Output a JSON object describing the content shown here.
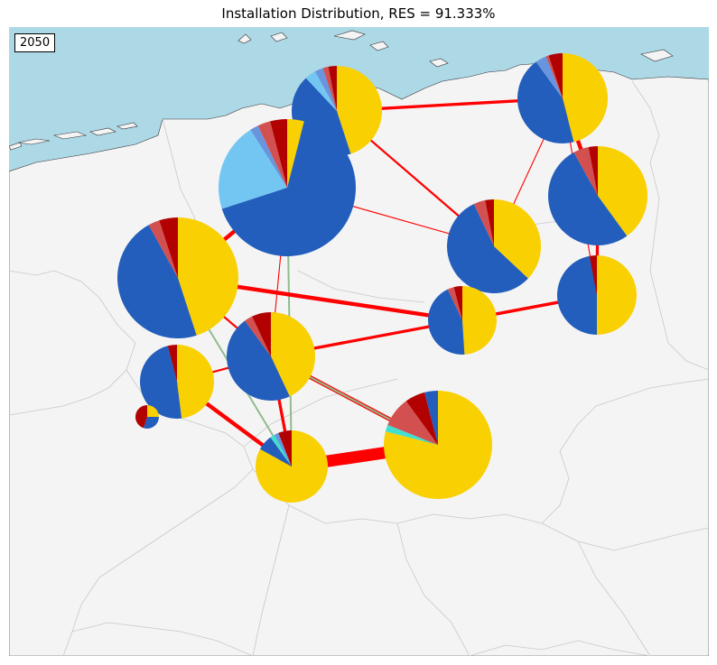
{
  "title": "Installation Distribution, RES = 91.333%",
  "year": "2050",
  "colors": {
    "sea": "#add8e6",
    "land": "#f4f4f4",
    "border": "#c8c8c8",
    "frame": "#000000",
    "ac_line": "#ff0000",
    "dc_line": "#8fbc8f",
    "solar": "#f9d002",
    "onwind": "#235ebc",
    "offwind_ac": "#6895dd",
    "offwind_dc": "#74c6f2",
    "ror": "#40e0d0",
    "gas": "#d35050",
    "coal": "#b20101"
  },
  "nodes": [
    {
      "id": "n1",
      "parts": [
        {
          "c": "solar",
          "v": 45
        },
        {
          "c": "onwind",
          "v": 43
        },
        {
          "c": "offwind_dc",
          "v": 4
        },
        {
          "c": "offwind_ac",
          "v": 3
        },
        {
          "c": "gas",
          "v": 2
        },
        {
          "c": "coal",
          "v": 3
        }
      ]
    },
    {
      "id": "n2",
      "parts": [
        {
          "c": "solar",
          "v": 4
        },
        {
          "c": "onwind",
          "v": 66
        },
        {
          "c": "offwind_dc",
          "v": 21
        },
        {
          "c": "offwind_ac",
          "v": 2
        },
        {
          "c": "gas",
          "v": 3
        },
        {
          "c": "coal",
          "v": 4
        }
      ]
    },
    {
      "id": "n3",
      "parts": [
        {
          "c": "solar",
          "v": 46
        },
        {
          "c": "onwind",
          "v": 44
        },
        {
          "c": "offwind_ac",
          "v": 4
        },
        {
          "c": "gas",
          "v": 1
        },
        {
          "c": "coal",
          "v": 5
        }
      ]
    },
    {
      "id": "n4",
      "parts": [
        {
          "c": "solar",
          "v": 45
        },
        {
          "c": "onwind",
          "v": 47
        },
        {
          "c": "gas",
          "v": 3
        },
        {
          "c": "coal",
          "v": 5
        }
      ]
    },
    {
      "id": "n5",
      "parts": [
        {
          "c": "solar",
          "v": 40
        },
        {
          "c": "onwind",
          "v": 52
        },
        {
          "c": "gas",
          "v": 5
        },
        {
          "c": "coal",
          "v": 3
        }
      ]
    },
    {
      "id": "n6",
      "parts": [
        {
          "c": "solar",
          "v": 37
        },
        {
          "c": "onwind",
          "v": 56
        },
        {
          "c": "gas",
          "v": 4
        },
        {
          "c": "coal",
          "v": 3
        }
      ]
    },
    {
      "id": "n7",
      "parts": [
        {
          "c": "solar",
          "v": 50
        },
        {
          "c": "onwind",
          "v": 47
        },
        {
          "c": "coal",
          "v": 3
        }
      ]
    },
    {
      "id": "n8",
      "parts": [
        {
          "c": "solar",
          "v": 49
        },
        {
          "c": "onwind",
          "v": 44
        },
        {
          "c": "gas",
          "v": 3
        },
        {
          "c": "coal",
          "v": 4
        }
      ]
    },
    {
      "id": "n9",
      "parts": [
        {
          "c": "solar",
          "v": 43
        },
        {
          "c": "onwind",
          "v": 47
        },
        {
          "c": "gas",
          "v": 3
        },
        {
          "c": "coal",
          "v": 7
        }
      ]
    },
    {
      "id": "n10",
      "parts": [
        {
          "c": "solar",
          "v": 48
        },
        {
          "c": "onwind",
          "v": 48
        },
        {
          "c": "coal",
          "v": 4
        }
      ]
    },
    {
      "id": "n11",
      "parts": [
        {
          "c": "solar",
          "v": 83
        },
        {
          "c": "onwind",
          "v": 7
        },
        {
          "c": "ror",
          "v": 2
        },
        {
          "c": "offwind_ac",
          "v": 2
        },
        {
          "c": "coal",
          "v": 6
        }
      ]
    },
    {
      "id": "n12",
      "parts": [
        {
          "c": "solar",
          "v": 79
        },
        {
          "c": "ror",
          "v": 2
        },
        {
          "c": "gas",
          "v": 9
        },
        {
          "c": "coal",
          "v": 6
        },
        {
          "c": "onwind",
          "v": 4
        }
      ]
    },
    {
      "id": "n13",
      "parts": [
        {
          "c": "solar",
          "v": 49
        },
        {
          "c": "onwind",
          "v": 43
        },
        {
          "c": "gas",
          "v": 3
        },
        {
          "c": "coal",
          "v": 5
        }
      ]
    },
    {
      "id": "n14",
      "parts": [
        {
          "c": "solar",
          "v": 25
        },
        {
          "c": "onwind",
          "v": 30
        },
        {
          "c": "coal",
          "v": 45
        }
      ]
    }
  ],
  "links": [
    {
      "from": "n1",
      "to": "n6",
      "kind": "ac",
      "weight": 2
    },
    {
      "from": "n1",
      "to": "n3",
      "kind": "ac",
      "weight": 3
    },
    {
      "from": "n2",
      "to": "n6",
      "kind": "ac",
      "weight": 1
    },
    {
      "from": "n2",
      "to": "n4",
      "kind": "ac",
      "weight": 4
    },
    {
      "from": "n2",
      "to": "n9",
      "kind": "ac",
      "weight": 1
    },
    {
      "from": "n2",
      "to": "n11",
      "kind": "dc",
      "weight": 1
    },
    {
      "from": "n3",
      "to": "n5",
      "kind": "ac",
      "weight": 4
    },
    {
      "from": "n3",
      "to": "n6",
      "kind": "ac",
      "weight": 1
    },
    {
      "from": "n3",
      "to": "n7",
      "kind": "ac",
      "weight": 1
    },
    {
      "from": "n4",
      "to": "n9",
      "kind": "ac",
      "weight": 2
    },
    {
      "from": "n4",
      "to": "n8",
      "kind": "ac",
      "weight": 4
    },
    {
      "from": "n4",
      "to": "n11",
      "kind": "dc",
      "weight": 1
    },
    {
      "from": "n5",
      "to": "n7",
      "kind": "ac",
      "weight": 3
    },
    {
      "from": "n6",
      "to": "n8",
      "kind": "ac",
      "weight": 1
    },
    {
      "from": "n8",
      "to": "n7",
      "kind": "ac",
      "weight": 3
    },
    {
      "from": "n9",
      "to": "n8",
      "kind": "ac",
      "weight": 1
    },
    {
      "from": "n9",
      "to": "n10",
      "kind": "ac",
      "weight": 2
    },
    {
      "from": "n9",
      "to": "n12",
      "kind": "ac",
      "weight": 3
    },
    {
      "from": "n9",
      "to": "n11",
      "kind": "ac",
      "weight": 3
    },
    {
      "from": "n10",
      "to": "n11",
      "kind": "ac",
      "weight": 4
    },
    {
      "from": "n11",
      "to": "n12",
      "kind": "ac",
      "weight": 12
    },
    {
      "from": "n13",
      "to": "n12",
      "kind": "ac",
      "weight": 4
    },
    {
      "from": "n13",
      "to": "n12",
      "kind": "dc",
      "weight": 1
    },
    {
      "from": "n13",
      "to": "n7",
      "kind": "ac",
      "weight": 3
    },
    {
      "from": "n13",
      "to": "n9",
      "kind": "ac",
      "weight": 2
    }
  ]
}
